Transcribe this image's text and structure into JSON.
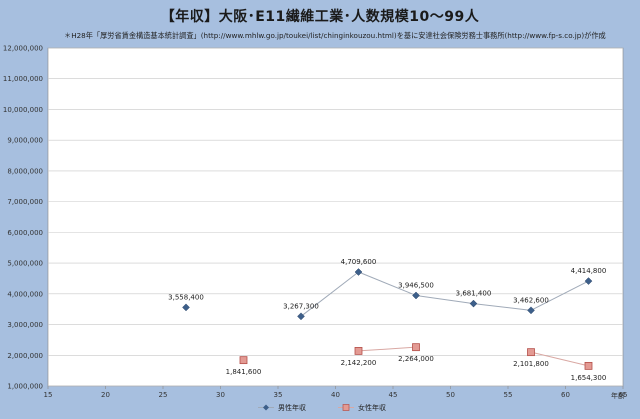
{
  "chart_data": {
    "type": "line",
    "title": "【年収】大阪･E11繊維工業･人数規模10～99人",
    "subtitle": "＊H28年「厚労省賃金構造基本統計調査」(http://www.mhlw.go.jp/toukei/list/chinginkouzou.html)を基に安達社会保険労務士事務所(http://www.fp-s.co.jp)が作成",
    "xlabel": "年齢",
    "ylabel": "",
    "xlim": [
      15,
      65
    ],
    "ylim": [
      1000000,
      12000000
    ],
    "x_ticks": [
      "15",
      "20",
      "25",
      "30",
      "35",
      "40",
      "45",
      "50",
      "55",
      "60",
      "65"
    ],
    "y_ticks": [
      "1,000,000",
      "2,000,000",
      "3,000,000",
      "4,000,000",
      "5,000,000",
      "6,000,000",
      "7,000,000",
      "8,000,000",
      "9,000,000",
      "10,000,000",
      "11,000,000",
      "12,000,000"
    ],
    "grid": "horizontal",
    "legend_position": "bottom",
    "series": [
      {
        "name": "男性年収",
        "color": "#3d5f8a",
        "marker": "diamond",
        "points": [
          {
            "x": 27,
            "y": 3558400,
            "label": "3,558,400"
          },
          {
            "x": 37,
            "y": 3267300,
            "label": "3,267,300"
          },
          {
            "x": 42,
            "y": 4709600,
            "label": "4,709,600"
          },
          {
            "x": 47,
            "y": 3946500,
            "label": "3,946,500"
          },
          {
            "x": 52,
            "y": 3681400,
            "label": "3,681,400"
          },
          {
            "x": 57,
            "y": 3462600,
            "label": "3,462,600"
          },
          {
            "x": 62,
            "y": 4414800,
            "label": "4,414,800"
          }
        ]
      },
      {
        "name": "女性年収",
        "color": "#e39a93",
        "marker": "square",
        "points": [
          {
            "x": 32,
            "y": 1841600,
            "label": "1,841,600"
          },
          {
            "x": 42,
            "y": 2142200,
            "label": "2,142,200"
          },
          {
            "x": 47,
            "y": 2264000,
            "label": "2,264,000"
          },
          {
            "x": 57,
            "y": 2101800,
            "label": "2,101,800"
          },
          {
            "x": 62,
            "y": 1654300,
            "label": "1,654,300"
          }
        ]
      }
    ]
  }
}
